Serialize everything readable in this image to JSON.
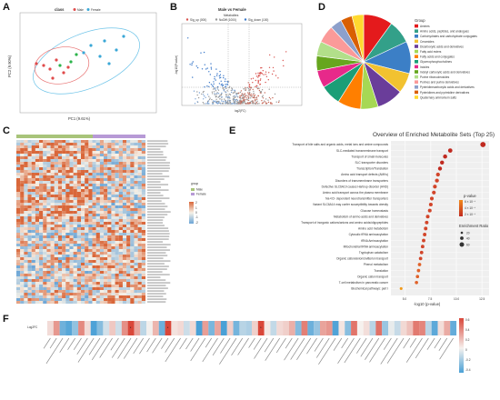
{
  "panels": {
    "A": "A",
    "B": "B",
    "C": "C",
    "D": "D",
    "E": "E",
    "F": "F"
  },
  "panelA": {
    "legend_title": "class",
    "legend_items": [
      "Male",
      "Female"
    ],
    "xlabel": "PC1 (9.61%)",
    "ylabel": "PC2 (9.90%)",
    "colors": {
      "Male": "#e04b4b",
      "Female": "#3aa7d6",
      "other": "#2bb34a"
    }
  },
  "panelB": {
    "title": "Male vs Female",
    "subtitle": "Metabolites",
    "legend": [
      "Sig_up (000)",
      "NoDiff (1000)",
      "Sig_down (100)"
    ],
    "xlabel": "log2(FC)",
    "ylabel": "-log10(P.value)"
  },
  "panelD": {
    "legend_title": "Group",
    "groups": [
      "Amines",
      "Amino acids, peptides, and analogues",
      "Carbohydrates and carbohydrate conjugates",
      "Ceramides",
      "Dicarboxylic acids and derivatives",
      "Fatty acid esters",
      "Fatty acids and conjugates",
      "Glycerophosphocholines",
      "Indoles",
      "Indolyl carboxylic acids and derivatives",
      "Purine ribonucleosides",
      "Purines and purine derivatives",
      "Pyrimidinecarboxylic acids and derivatives",
      "Pyrimidines and pyrimidine derivatives",
      "Quaternary ammonium salts"
    ],
    "colors": [
      "#e41a1c",
      "#33a089",
      "#3c7fc6",
      "#f2c230",
      "#6a3d9a",
      "#a6d854",
      "#ff7f00",
      "#1b9e77",
      "#e7298a",
      "#66a61e",
      "#b2df8a",
      "#fb9a99",
      "#8da0cb",
      "#d95f02",
      "#ffd92f"
    ],
    "slices": [
      10,
      8,
      11,
      7,
      9,
      6,
      8,
      7,
      6,
      5,
      5,
      6,
      4,
      4,
      4
    ]
  },
  "panelC": {
    "legend_title": "group",
    "legend_items": [
      "Male",
      "Female"
    ],
    "scale": [
      "2",
      "1",
      "0",
      "-1",
      "-2"
    ]
  },
  "panelE": {
    "title": "Overview of Enriched Metabolite Sets (Top 25)",
    "xlabel": "-log10 (p-value)",
    "xticks": [
      "5.0",
      "7.5",
      "10.0",
      "12.5"
    ],
    "legend_p_title": "p-value",
    "legend_p": [
      "6 × 10⁻⁴",
      "4 × 10⁻⁴",
      "2 × 10⁻⁴"
    ],
    "legend_size_title": "Enrichment Ratio",
    "legend_size": [
      "20",
      "40",
      "60"
    ],
    "terms": [
      "Transport of bile salts and organic acids, metal ions and amine compounds",
      "SLC-mediated transmembrane transport",
      "Transport of small molecules",
      "SLC transporter disorders",
      "Transcription/Translation",
      "Amino acid transport defects (AMKs)",
      "Disorders of transmembrane transporters",
      "Defective SLC6A19 causes Hartnup disorder (HND)",
      "Amino acid transport across the plasma membrane",
      "Na+/Cl- dependent neurotransmitter transporters",
      "Variant SLC6A14 may confer susceptibility towards obesity",
      "Glucose homeostasis",
      "Metabolism of amino acids and derivatives",
      "Transport of inorganic cations/anions and amino acids/oligopeptides",
      "Amino acid metabolism",
      "Cytosolic tRNA aminoacylation",
      "tRNA Aminoacylation",
      "Mitochondrial tRNA aminoacylation",
      "Tryptophan catabolism",
      "Organic cation/anion/zwitterion transport",
      "Phenol metabolism",
      "Translation",
      "Organic cation transport",
      "T-cell metabolism in pancreatic cancer",
      "Biochemical pathways: part I"
    ],
    "values": [
      12.6,
      9.4,
      8.9,
      8.6,
      8.4,
      8.2,
      8.1,
      7.9,
      7.8,
      7.6,
      7.5,
      7.4,
      7.2,
      7.1,
      7.0,
      6.9,
      6.8,
      6.7,
      6.6,
      6.5,
      6.4,
      6.3,
      6.2,
      6.1,
      4.6
    ]
  },
  "panelF": {
    "row_label": "Log2FC",
    "scale": [
      "0.6",
      "0.4",
      "0.2",
      "0",
      "-0.2",
      "-0.4"
    ]
  }
}
